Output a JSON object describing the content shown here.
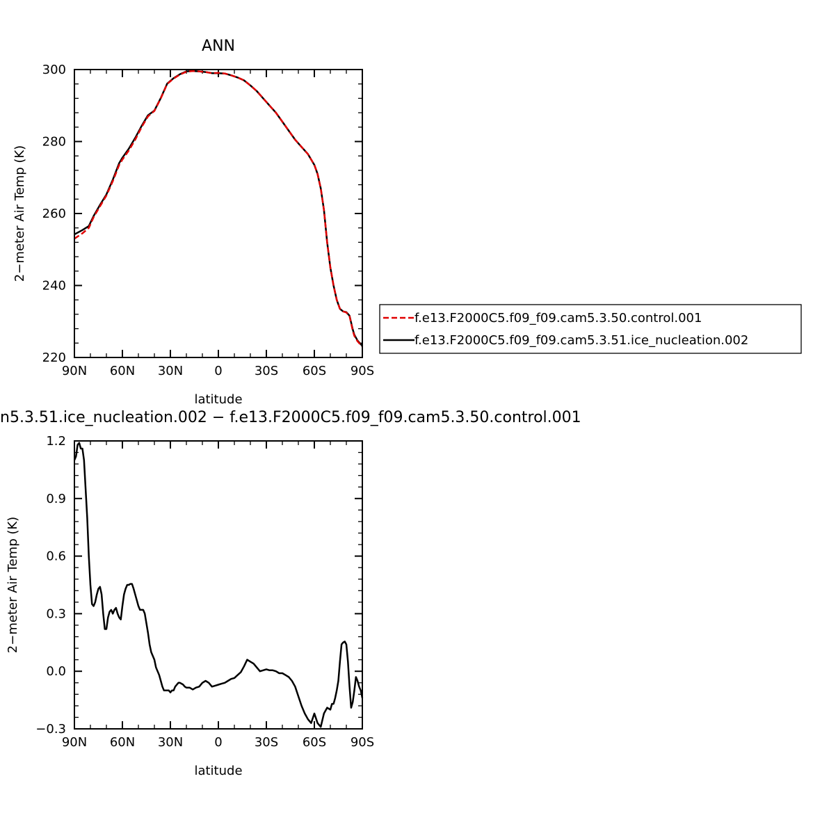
{
  "top_panel": {
    "title": "ANN",
    "ylabel": "2−meter Air Temp (K)",
    "xlabel": "latitude"
  },
  "bottom_panel": {
    "title": "n5.3.51.ice_nucleation.002  −  f.e13.F2000C5.f09_f09.cam5.3.50.control.001",
    "ylabel": "2−meter Air Temp (K)",
    "xlabel": "latitude"
  },
  "legend": {
    "items": [
      {
        "label": "f.e13.F2000C5.f09_f09.cam5.3.50.control.001",
        "color": "#e00000",
        "style": "dashed"
      },
      {
        "label": "f.e13.F2000C5.f09_f09.cam5.3.51.ice_nucleation.002",
        "color": "#000000",
        "style": "solid"
      }
    ]
  },
  "chart_data": [
    {
      "type": "line",
      "title": "ANN",
      "xlabel": "latitude",
      "ylabel": "2−meter Air Temp (K)",
      "xlim": [
        90,
        -90
      ],
      "ylim": [
        220,
        300
      ],
      "xticks": [
        90,
        60,
        30,
        0,
        -30,
        -60,
        -90
      ],
      "xtick_labels": [
        "90N",
        "60N",
        "30N",
        "0",
        "30S",
        "60S",
        "90S"
      ],
      "yticks": [
        220,
        240,
        260,
        280,
        300
      ],
      "ytick_labels": [
        "220",
        "240",
        "260",
        "280",
        "300"
      ],
      "grid": false,
      "legend_position": "right",
      "series": [
        {
          "name": "f.e13.F2000C5.f09_f09.cam5.3.50.control.001",
          "color": "#e00000",
          "style": "dashed",
          "x": [
            90,
            85,
            81,
            78,
            74,
            70,
            66,
            62,
            60,
            56,
            52,
            48,
            44,
            40,
            36,
            32,
            28,
            24,
            20,
            16,
            12,
            8,
            4,
            0,
            -4,
            -8,
            -12,
            -16,
            -20,
            -24,
            -28,
            -32,
            -36,
            -40,
            -44,
            -48,
            -52,
            -56,
            -58,
            -60,
            -62,
            -64,
            -66,
            -68,
            -70,
            -72,
            -74,
            -76,
            -78,
            -80,
            -82,
            -84,
            -85,
            -87,
            -90
          ],
          "y": [
            253,
            254.5,
            256,
            259,
            262,
            265,
            269,
            273.5,
            275,
            277.5,
            280.5,
            284,
            287,
            288.5,
            292,
            296,
            297.5,
            298.6,
            299.4,
            299.6,
            299.5,
            299.3,
            299,
            299.1,
            298.9,
            298.4,
            297.8,
            297,
            295.6,
            294,
            292,
            290,
            288,
            285.5,
            283,
            280.5,
            278.5,
            276.5,
            275,
            273.5,
            271,
            267,
            261,
            252,
            245,
            240,
            236,
            233.5,
            232.8,
            232.5,
            231.5,
            227.5,
            226,
            224.5,
            223
          ]
        },
        {
          "name": "f.e13.F2000C5.f09_f09.cam5.3.51.ice_nucleation.002",
          "color": "#000000",
          "style": "solid",
          "x": [
            90,
            85,
            81,
            78,
            74,
            70,
            66,
            62,
            60,
            56,
            52,
            48,
            44,
            40,
            36,
            32,
            28,
            24,
            20,
            16,
            12,
            8,
            4,
            0,
            -4,
            -8,
            -12,
            -16,
            -20,
            -24,
            -28,
            -32,
            -36,
            -40,
            -44,
            -48,
            -52,
            -56,
            -58,
            -60,
            -62,
            -64,
            -66,
            -68,
            -70,
            -72,
            -74,
            -76,
            -78,
            -80,
            -82,
            -84,
            -85,
            -87,
            -90
          ],
          "y": [
            254.2,
            255.4,
            256.5,
            259.3,
            262.4,
            265.3,
            269.4,
            274,
            275.5,
            278,
            281,
            284.3,
            287.3,
            288.6,
            292.1,
            296.1,
            297.6,
            298.7,
            299.5,
            299.6,
            299.5,
            299.3,
            299,
            299,
            298.9,
            298.4,
            297.8,
            297,
            295.6,
            294,
            292,
            290,
            288,
            285.5,
            283,
            280.5,
            278.5,
            276.5,
            275,
            273.5,
            271,
            267,
            261,
            252,
            245,
            240,
            236,
            233.5,
            232.8,
            232.6,
            231.6,
            227.8,
            226.3,
            224.7,
            223.2
          ]
        }
      ]
    },
    {
      "type": "line",
      "title": "n5.3.51.ice_nucleation.002  −  f.e13.F2000C5.f09_f09.cam5.3.50.control.001",
      "xlabel": "latitude",
      "ylabel": "2−meter Air Temp (K)",
      "xlim": [
        90,
        -90
      ],
      "ylim": [
        -0.3,
        1.2
      ],
      "xticks": [
        90,
        60,
        30,
        0,
        -30,
        -60,
        -90
      ],
      "xtick_labels": [
        "90N",
        "60N",
        "30N",
        "0",
        "30S",
        "60S",
        "90S"
      ],
      "yticks": [
        -0.3,
        0,
        0.3,
        0.6,
        0.9,
        1.2
      ],
      "ytick_labels": [
        "−0.3",
        "0.0",
        "0.3",
        "0.6",
        "0.9",
        "1.2"
      ],
      "grid": false,
      "series": [
        {
          "color": "#000000",
          "style": "solid",
          "x": [
            90,
            89,
            88,
            87,
            86,
            85,
            84,
            83,
            82,
            81,
            80,
            79,
            78,
            77,
            76,
            75,
            74,
            73,
            72,
            71,
            70,
            69,
            68,
            67,
            66,
            65,
            64,
            63,
            62,
            61,
            60,
            59,
            58,
            57,
            56,
            55,
            54,
            53,
            52,
            51,
            50,
            49,
            48,
            47,
            46,
            45,
            44,
            43,
            42,
            41,
            40,
            39,
            38,
            37,
            36,
            35,
            34,
            33,
            32,
            31,
            30,
            29,
            28,
            27,
            26,
            25,
            24,
            23,
            22,
            21,
            20,
            18,
            16,
            14,
            12,
            10,
            8,
            6,
            4,
            2,
            0,
            -2,
            -4,
            -6,
            -8,
            -10,
            -12,
            -14,
            -16,
            -18,
            -20,
            -22,
            -24,
            -26,
            -28,
            -30,
            -32,
            -34,
            -36,
            -38,
            -40,
            -42,
            -44,
            -46,
            -48,
            -50,
            -52,
            -54,
            -56,
            -58,
            -60,
            -62,
            -64,
            -66,
            -68,
            -70,
            -71,
            -72,
            -73,
            -74,
            -75,
            -76,
            -77,
            -78,
            -79,
            -80,
            -81,
            -82,
            -83,
            -84,
            -85,
            -86,
            -87,
            -88,
            -89,
            -90
          ],
          "y": [
            1.1,
            1.12,
            1.18,
            1.19,
            1.16,
            1.16,
            1.1,
            0.95,
            0.8,
            0.6,
            0.45,
            0.35,
            0.34,
            0.36,
            0.4,
            0.43,
            0.44,
            0.4,
            0.3,
            0.22,
            0.22,
            0.28,
            0.31,
            0.32,
            0.3,
            0.32,
            0.33,
            0.3,
            0.28,
            0.27,
            0.34,
            0.4,
            0.43,
            0.45,
            0.45,
            0.455,
            0.455,
            0.43,
            0.4,
            0.37,
            0.34,
            0.32,
            0.32,
            0.32,
            0.3,
            0.25,
            0.2,
            0.14,
            0.1,
            0.08,
            0.06,
            0.02,
            0.0,
            -0.02,
            -0.05,
            -0.08,
            -0.1,
            -0.1,
            -0.1,
            -0.1,
            -0.11,
            -0.1,
            -0.1,
            -0.08,
            -0.07,
            -0.06,
            -0.06,
            -0.065,
            -0.07,
            -0.08,
            -0.085,
            -0.085,
            -0.095,
            -0.085,
            -0.08,
            -0.06,
            -0.05,
            -0.06,
            -0.08,
            -0.075,
            -0.07,
            -0.065,
            -0.06,
            -0.05,
            -0.04,
            -0.035,
            -0.02,
            -0.005,
            0.025,
            0.06,
            0.05,
            0.04,
            0.02,
            0.0,
            0.005,
            0.01,
            0.005,
            0.005,
            0.0,
            -0.01,
            -0.01,
            -0.02,
            -0.03,
            -0.05,
            -0.08,
            -0.13,
            -0.18,
            -0.22,
            -0.25,
            -0.27,
            -0.22,
            -0.27,
            -0.29,
            -0.22,
            -0.19,
            -0.2,
            -0.17,
            -0.17,
            -0.14,
            -0.1,
            -0.05,
            0.05,
            0.14,
            0.15,
            0.155,
            0.14,
            0.05,
            -0.08,
            -0.19,
            -0.16,
            -0.1,
            -0.03,
            -0.05,
            -0.08,
            -0.1,
            -0.14
          ]
        }
      ]
    }
  ]
}
